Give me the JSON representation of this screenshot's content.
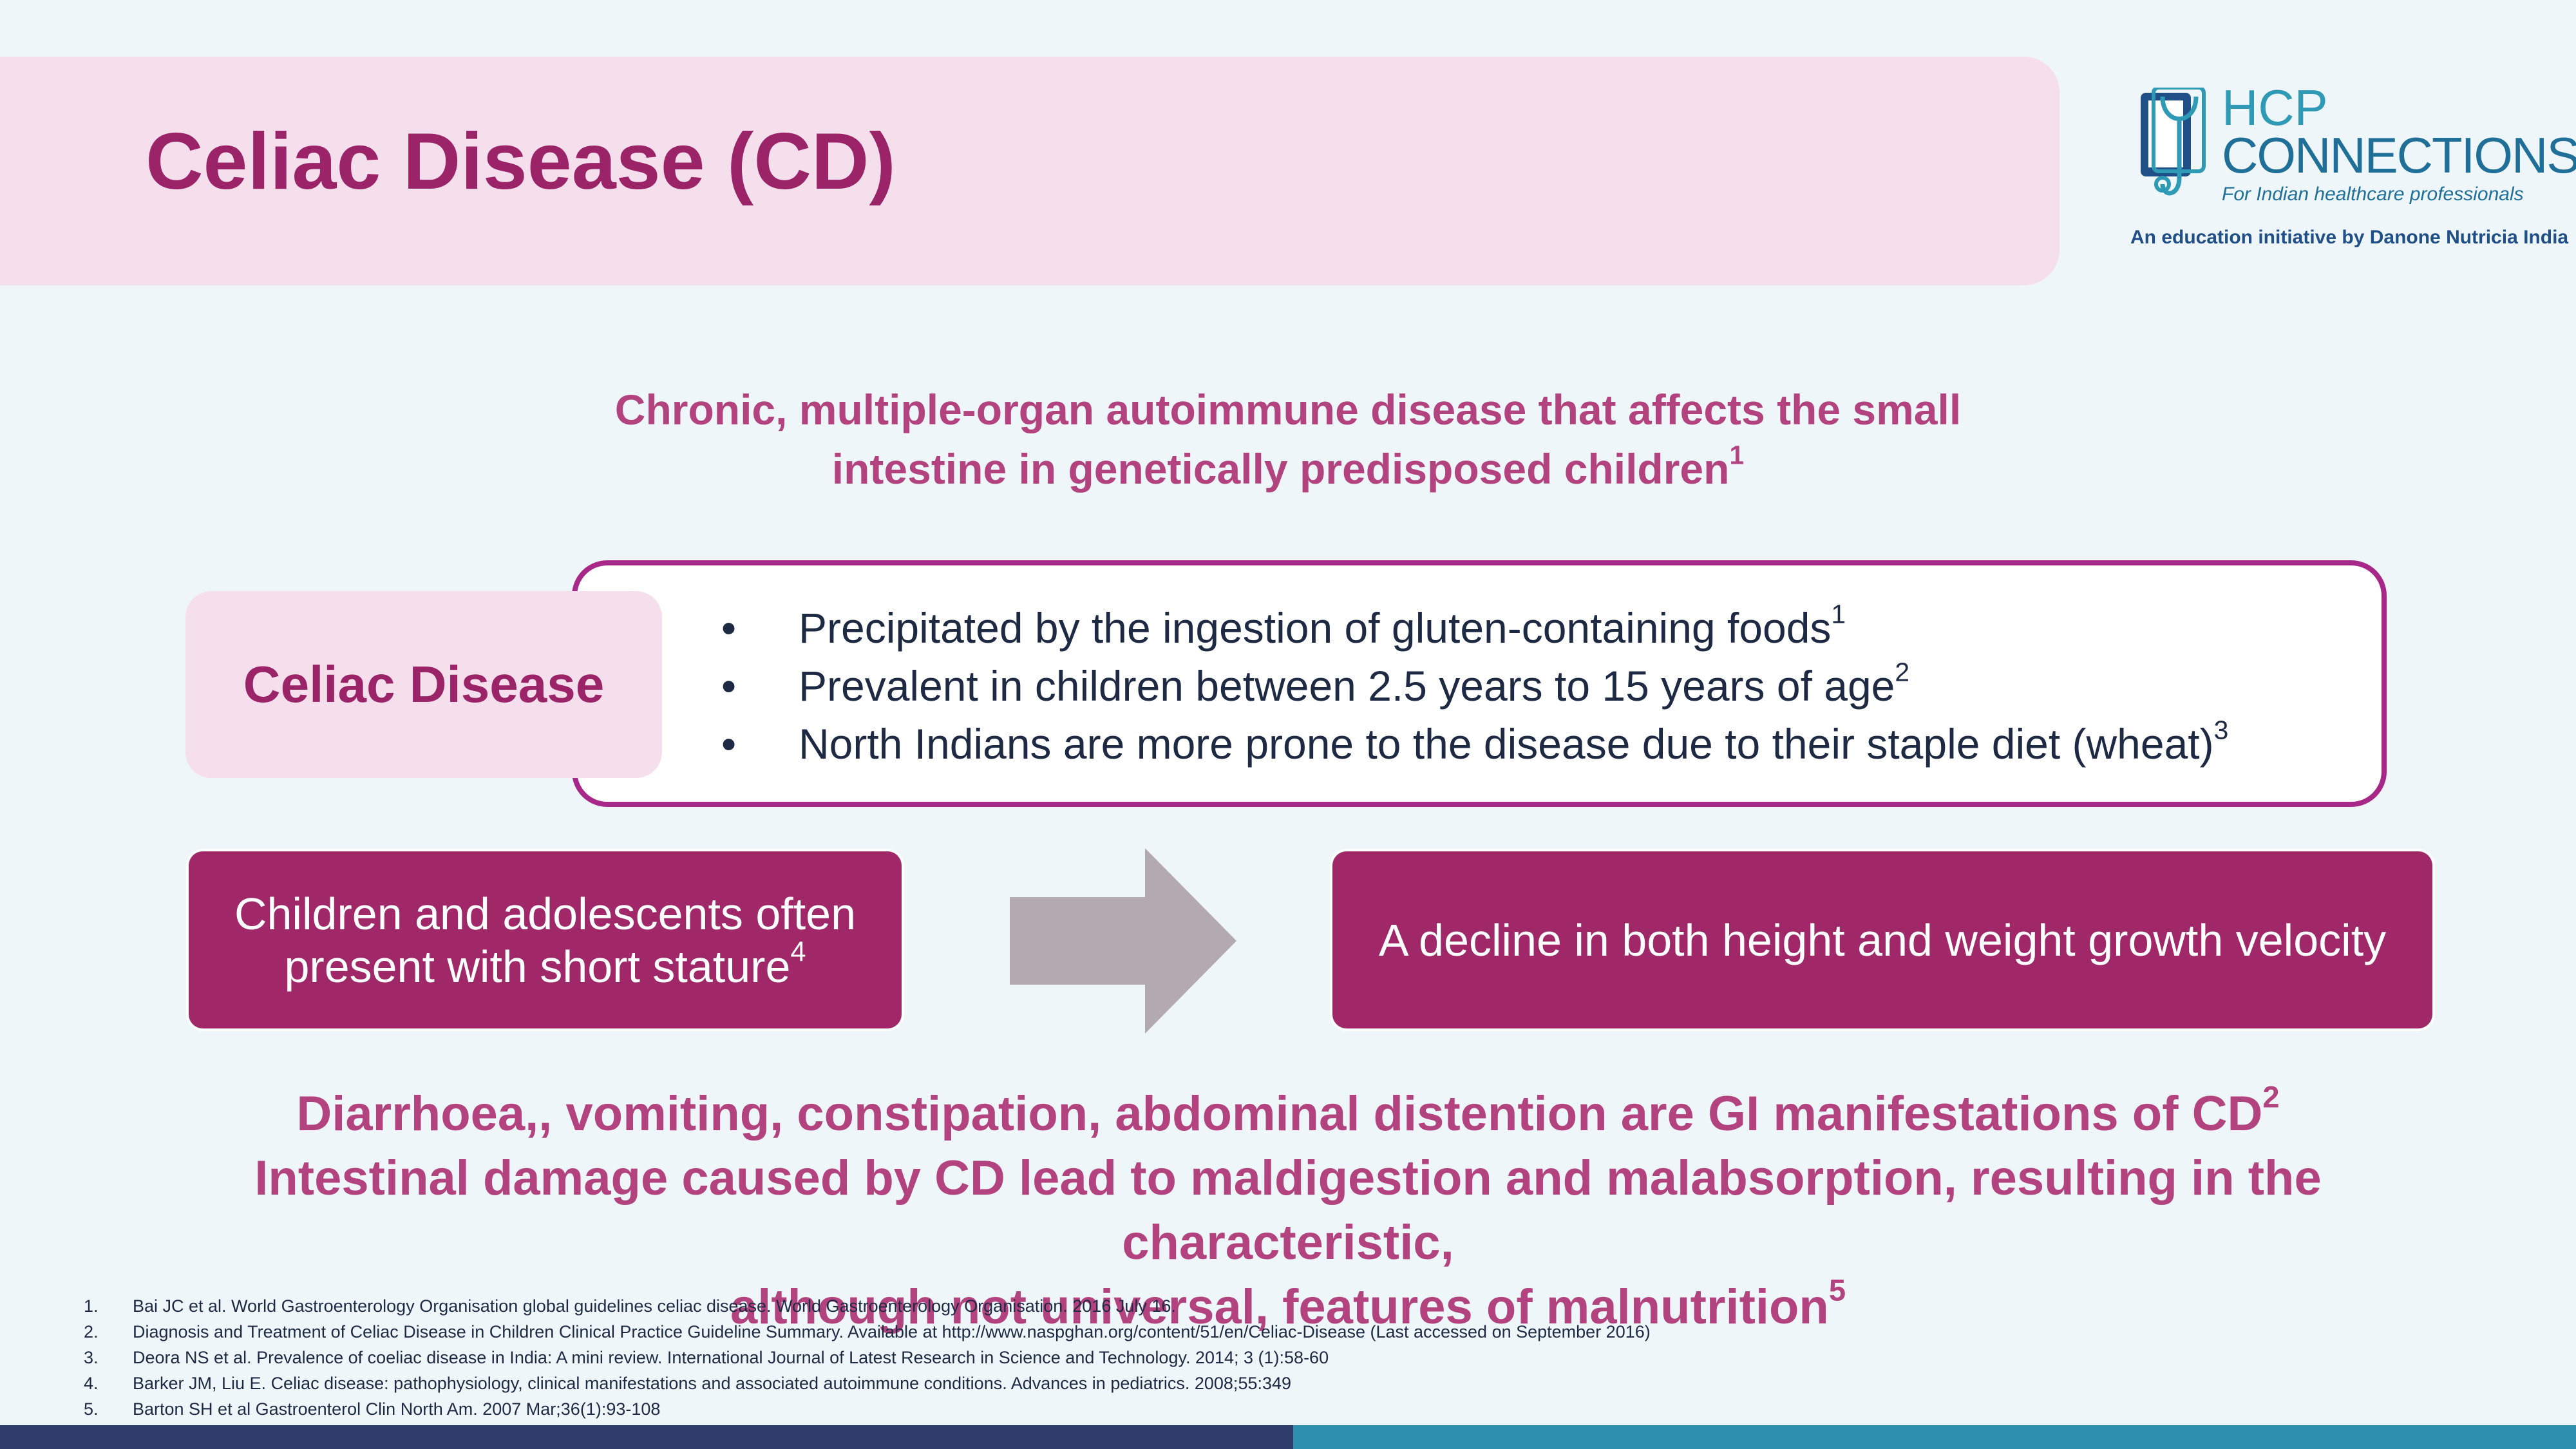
{
  "title": "Celiac Disease (CD)",
  "logo": {
    "line1": "HCP",
    "line2": "CONNECTIONS",
    "tagline": "For Indian healthcare professionals",
    "initiative": "An education initiative by Danone Nutricia India",
    "icon": "tablet-stethoscope-icon"
  },
  "subtitle": {
    "line1": "Chronic, multiple-organ autoimmune disease that affects the small",
    "line2": "intestine in genetically predisposed children",
    "ref": "1"
  },
  "cd_box": {
    "label": "Celiac Disease",
    "bullets": [
      {
        "text": "Precipitated by the ingestion of gluten-containing foods",
        "ref": "1"
      },
      {
        "text": "Prevalent in children between 2.5 years to 15 years of age",
        "ref": "2"
      },
      {
        "text": "North Indians are more prone to the disease due to their staple diet (wheat)",
        "ref": "3"
      }
    ]
  },
  "flow": {
    "left_line1": "Children and adolescents often",
    "left_line2": "present with short stature",
    "left_ref": "4",
    "right": "A decline in both height and weight growth velocity",
    "arrow_icon": "right-arrow-icon"
  },
  "gi": {
    "line1": "Diarrhoea,, vomiting, constipation, abdominal distention are GI manifestations of CD",
    "line1_ref": "2",
    "line2": "Intestinal damage caused by CD lead to  maldigestion and malabsorption, resulting in the characteristic,",
    "line3": "although not universal, features of malnutrition",
    "line3_ref": "5"
  },
  "references": [
    {
      "num": "1.",
      "text": "Bai JC et al. World Gastroenterology Organisation global guidelines celiac disease. World Gastroenterology Organisation. 2016 July 16."
    },
    {
      "num": "2.",
      "text": "Diagnosis and Treatment of Celiac Disease in Children Clinical Practice Guideline Summary. Available at http://www.naspghan.org/content/51/en/Celiac-Disease (Last accessed on September 2016)"
    },
    {
      "num": "3.",
      "text": "Deora NS et al. Prevalence of coeliac disease in India: A mini review. International Journal of Latest Research in Science and Technology. 2014; 3 (1):58-60"
    },
    {
      "num": "4.",
      "text": "Barker JM, Liu E. Celiac disease: pathophysiology, clinical manifestations and associated autoimmune conditions. Advances in pediatrics. 2008;55:349"
    },
    {
      "num": "5.",
      "text": "Barton SH et al Gastroenterol Clin North Am. 2007 Mar;36(1):93-108"
    }
  ],
  "colors": {
    "title": "#9b2469",
    "accent_pink": "#b2437f",
    "box_magenta": "#a02768",
    "border_purple": "#a8288a",
    "banner_pink": "#f6dfec",
    "bar_navy": "#2e3d6a",
    "bar_teal": "#2e8fae"
  }
}
